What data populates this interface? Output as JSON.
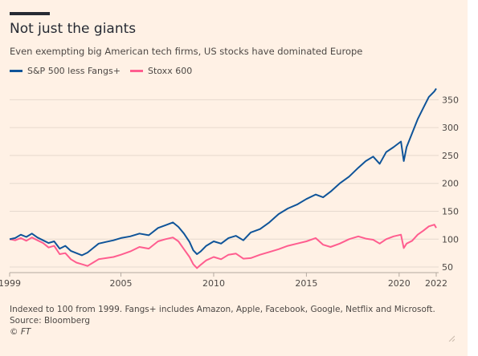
{
  "title": "Not just the giants",
  "subtitle": "Even exempting big American tech firms, US stocks have dominated Europe",
  "footer": {
    "note": "Indexed to 100 from 1999. Fangs+ includes Amazon, Apple, Facebook, Google, Netflix and Microsoft.",
    "source": "Source: Bloomberg",
    "credit": "© FT"
  },
  "colors": {
    "background": "#fff1e5",
    "sp500": "#0f5499",
    "stoxx": "#ff5d8f",
    "grid": "#e6d9ce",
    "text": "#4d4845"
  },
  "chart_data": {
    "type": "line",
    "xlim": [
      1999,
      2022
    ],
    "ylim": [
      40,
      385
    ],
    "x_ticks": [
      "1999",
      "2005",
      "2010",
      "2015",
      "2020",
      "2022"
    ],
    "x_tick_values": [
      1999,
      2005,
      2010,
      2015,
      2020,
      2022
    ],
    "y_ticks": [
      50,
      100,
      150,
      200,
      250,
      300,
      350
    ],
    "y_axis_position": "right",
    "grid": true,
    "legend_position": "top-left",
    "series": [
      {
        "name": "S&P 500 less Fangs+",
        "color": "#0f5499",
        "x": [
          1999.0,
          1999.3,
          1999.6,
          1999.9,
          2000.2,
          2000.5,
          2000.8,
          2001.1,
          2001.4,
          2001.7,
          2002.0,
          2002.3,
          2002.6,
          2002.9,
          2003.2,
          2003.5,
          2003.8,
          2004.2,
          2004.6,
          2005.0,
          2005.5,
          2006.0,
          2006.5,
          2007.0,
          2007.4,
          2007.8,
          2008.1,
          2008.4,
          2008.7,
          2008.9,
          2009.1,
          2009.3,
          2009.6,
          2010.0,
          2010.4,
          2010.8,
          2011.2,
          2011.6,
          2012.0,
          2012.5,
          2013.0,
          2013.5,
          2014.0,
          2014.5,
          2015.0,
          2015.5,
          2015.9,
          2016.3,
          2016.8,
          2017.3,
          2017.8,
          2018.2,
          2018.6,
          2018.95,
          2019.3,
          2019.7,
          2020.1,
          2020.25,
          2020.4,
          2020.7,
          2021.0,
          2021.3,
          2021.6,
          2021.9,
          2022.0
        ],
        "values": [
          100,
          102,
          108,
          104,
          110,
          103,
          98,
          93,
          96,
          83,
          88,
          79,
          75,
          71,
          76,
          84,
          92,
          95,
          98,
          102,
          105,
          110,
          107,
          120,
          125,
          130,
          122,
          110,
          95,
          80,
          73,
          78,
          88,
          96,
          92,
          102,
          106,
          98,
          112,
          118,
          130,
          145,
          155,
          162,
          172,
          180,
          175,
          185,
          200,
          212,
          228,
          240,
          248,
          235,
          256,
          265,
          275,
          240,
          265,
          290,
          315,
          335,
          355,
          365,
          370
        ]
      },
      {
        "name": "Stoxx 600",
        "color": "#ff5d8f",
        "x": [
          1999.0,
          1999.3,
          1999.6,
          1999.9,
          2000.2,
          2000.5,
          2000.8,
          2001.1,
          2001.4,
          2001.7,
          2002.0,
          2002.3,
          2002.6,
          2002.9,
          2003.2,
          2003.5,
          2003.8,
          2004.2,
          2004.6,
          2005.0,
          2005.5,
          2006.0,
          2006.5,
          2007.0,
          2007.4,
          2007.8,
          2008.1,
          2008.4,
          2008.7,
          2008.9,
          2009.1,
          2009.3,
          2009.6,
          2010.0,
          2010.4,
          2010.8,
          2011.2,
          2011.6,
          2012.0,
          2012.5,
          2013.0,
          2013.5,
          2014.0,
          2014.5,
          2015.0,
          2015.5,
          2015.9,
          2016.3,
          2016.8,
          2017.3,
          2017.8,
          2018.2,
          2018.6,
          2018.95,
          2019.3,
          2019.7,
          2020.1,
          2020.25,
          2020.4,
          2020.7,
          2021.0,
          2021.3,
          2021.6,
          2021.9,
          2022.0
        ],
        "values": [
          100,
          98,
          102,
          97,
          103,
          98,
          93,
          85,
          88,
          73,
          75,
          64,
          58,
          55,
          52,
          58,
          64,
          66,
          68,
          72,
          78,
          86,
          83,
          96,
          100,
          103,
          96,
          82,
          68,
          55,
          48,
          54,
          62,
          68,
          64,
          72,
          74,
          65,
          66,
          72,
          77,
          82,
          88,
          92,
          96,
          102,
          90,
          86,
          92,
          100,
          105,
          101,
          99,
          92,
          100,
          105,
          108,
          84,
          92,
          97,
          108,
          115,
          123,
          126,
          120
        ]
      }
    ]
  }
}
